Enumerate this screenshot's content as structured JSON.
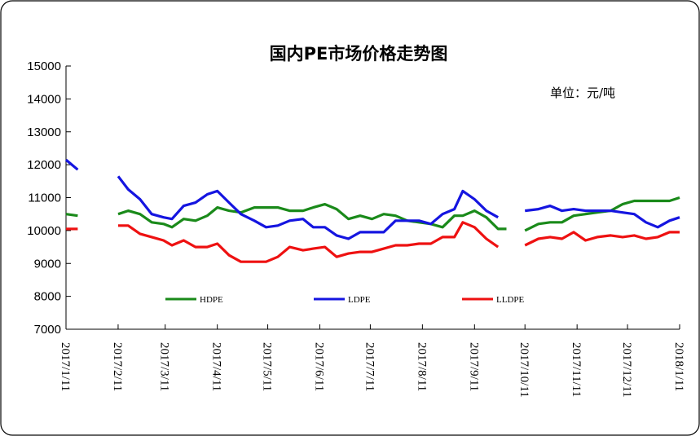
{
  "chart_data": {
    "type": "line",
    "title": "国内PE市场价格走势图",
    "unit_label": "单位：元/吨",
    "ylim": [
      7000,
      15000
    ],
    "y_ticks": [
      7000,
      8000,
      9000,
      10000,
      11000,
      12000,
      13000,
      14000,
      15000
    ],
    "x_ticks": [
      "2017/1/11",
      "2017/2/11",
      "2017/3/11",
      "2017/4/11",
      "2017/5/11",
      "2017/6/11",
      "2017/7/11",
      "2017/8/11",
      "2017/9/11",
      "2017/10/11",
      "2017/11/11",
      "2017/12/11",
      "2018/1/11"
    ],
    "legend_position": "bottom-inside",
    "grid": false,
    "series": [
      {
        "name": "HDPE",
        "color": "#1a8a1a",
        "segments": [
          [
            [
              "2017/1/11",
              10500
            ],
            [
              "2017/1/18",
              10450
            ]
          ],
          [
            [
              "2017/2/11",
              10500
            ],
            [
              "2017/2/17",
              10600
            ],
            [
              "2017/2/24",
              10500
            ],
            [
              "2017/3/3",
              10250
            ],
            [
              "2017/3/10",
              10200
            ],
            [
              "2017/3/15",
              10100
            ],
            [
              "2017/3/22",
              10350
            ],
            [
              "2017/3/29",
              10300
            ],
            [
              "2017/4/5",
              10450
            ],
            [
              "2017/4/11",
              10700
            ],
            [
              "2017/4/18",
              10600
            ],
            [
              "2017/4/25",
              10550
            ],
            [
              "2017/5/3",
              10700
            ],
            [
              "2017/5/10",
              10700
            ],
            [
              "2017/5/17",
              10700
            ],
            [
              "2017/5/24",
              10600
            ],
            [
              "2017/6/1",
              10600
            ],
            [
              "2017/6/7",
              10700
            ],
            [
              "2017/6/14",
              10800
            ],
            [
              "2017/6/21",
              10650
            ],
            [
              "2017/6/28",
              10350
            ],
            [
              "2017/7/5",
              10450
            ],
            [
              "2017/7/12",
              10350
            ],
            [
              "2017/7/19",
              10500
            ],
            [
              "2017/7/26",
              10450
            ],
            [
              "2017/8/2",
              10300
            ],
            [
              "2017/8/9",
              10250
            ],
            [
              "2017/8/16",
              10200
            ],
            [
              "2017/8/23",
              10100
            ],
            [
              "2017/8/30",
              10450
            ],
            [
              "2017/9/4",
              10450
            ],
            [
              "2017/9/11",
              10600
            ],
            [
              "2017/9/18",
              10400
            ],
            [
              "2017/9/25",
              10050
            ],
            [
              "2017/9/30",
              10050
            ]
          ],
          [
            [
              "2017/10/11",
              10000
            ],
            [
              "2017/10/19",
              10200
            ],
            [
              "2017/10/26",
              10250
            ],
            [
              "2017/11/2",
              10250
            ],
            [
              "2017/11/9",
              10450
            ],
            [
              "2017/11/16",
              10500
            ],
            [
              "2017/11/23",
              10550
            ],
            [
              "2017/12/1",
              10600
            ],
            [
              "2017/12/8",
              10800
            ],
            [
              "2017/12/15",
              10900
            ],
            [
              "2017/12/22",
              10900
            ],
            [
              "2017/12/29",
              10900
            ],
            [
              "2018/1/5",
              10900
            ],
            [
              "2018/1/11",
              11000
            ]
          ]
        ]
      },
      {
        "name": "LDPE",
        "color": "#1515e0",
        "segments": [
          [
            [
              "2017/1/11",
              12150
            ],
            [
              "2017/1/18",
              11850
            ]
          ],
          [
            [
              "2017/2/11",
              11650
            ],
            [
              "2017/2/17",
              11250
            ],
            [
              "2017/2/24",
              10950
            ],
            [
              "2017/3/3",
              10500
            ],
            [
              "2017/3/10",
              10400
            ],
            [
              "2017/3/15",
              10350
            ],
            [
              "2017/3/22",
              10750
            ],
            [
              "2017/3/29",
              10850
            ],
            [
              "2017/4/5",
              11100
            ],
            [
              "2017/4/11",
              11200
            ],
            [
              "2017/4/18",
              10850
            ],
            [
              "2017/4/25",
              10500
            ],
            [
              "2017/5/3",
              10300
            ],
            [
              "2017/5/10",
              10100
            ],
            [
              "2017/5/17",
              10150
            ],
            [
              "2017/5/24",
              10300
            ],
            [
              "2017/6/1",
              10350
            ],
            [
              "2017/6/7",
              10100
            ],
            [
              "2017/6/14",
              10100
            ],
            [
              "2017/6/21",
              9850
            ],
            [
              "2017/6/28",
              9750
            ],
            [
              "2017/7/5",
              9950
            ],
            [
              "2017/7/12",
              9950
            ],
            [
              "2017/7/19",
              9950
            ],
            [
              "2017/7/26",
              10300
            ],
            [
              "2017/8/2",
              10300
            ],
            [
              "2017/8/9",
              10300
            ],
            [
              "2017/8/16",
              10200
            ],
            [
              "2017/8/23",
              10500
            ],
            [
              "2017/8/30",
              10650
            ],
            [
              "2017/9/4",
              11200
            ],
            [
              "2017/9/11",
              10950
            ],
            [
              "2017/9/18",
              10600
            ],
            [
              "2017/9/25",
              10400
            ]
          ],
          [
            [
              "2017/10/11",
              10600
            ],
            [
              "2017/10/19",
              10650
            ],
            [
              "2017/10/26",
              10750
            ],
            [
              "2017/11/2",
              10600
            ],
            [
              "2017/11/9",
              10650
            ],
            [
              "2017/11/16",
              10600
            ],
            [
              "2017/11/23",
              10600
            ],
            [
              "2017/12/1",
              10600
            ],
            [
              "2017/12/8",
              10550
            ],
            [
              "2017/12/15",
              10500
            ],
            [
              "2017/12/22",
              10250
            ],
            [
              "2017/12/29",
              10100
            ],
            [
              "2018/1/5",
              10300
            ],
            [
              "2018/1/11",
              10400
            ]
          ]
        ]
      },
      {
        "name": "LLDPE",
        "color": "#ee1111",
        "segments": [
          [
            [
              "2017/1/11",
              10050
            ],
            [
              "2017/1/18",
              10050
            ]
          ],
          [
            [
              "2017/2/11",
              10150
            ],
            [
              "2017/2/17",
              10150
            ],
            [
              "2017/2/24",
              9900
            ],
            [
              "2017/3/3",
              9800
            ],
            [
              "2017/3/10",
              9700
            ],
            [
              "2017/3/15",
              9550
            ],
            [
              "2017/3/22",
              9700
            ],
            [
              "2017/3/29",
              9500
            ],
            [
              "2017/4/5",
              9500
            ],
            [
              "2017/4/11",
              9600
            ],
            [
              "2017/4/18",
              9250
            ],
            [
              "2017/4/25",
              9050
            ],
            [
              "2017/5/3",
              9050
            ],
            [
              "2017/5/10",
              9050
            ],
            [
              "2017/5/17",
              9200
            ],
            [
              "2017/5/24",
              9500
            ],
            [
              "2017/6/1",
              9400
            ],
            [
              "2017/6/7",
              9450
            ],
            [
              "2017/6/14",
              9500
            ],
            [
              "2017/6/21",
              9200
            ],
            [
              "2017/6/28",
              9300
            ],
            [
              "2017/7/5",
              9350
            ],
            [
              "2017/7/12",
              9350
            ],
            [
              "2017/7/19",
              9450
            ],
            [
              "2017/7/26",
              9550
            ],
            [
              "2017/8/2",
              9550
            ],
            [
              "2017/8/9",
              9600
            ],
            [
              "2017/8/16",
              9600
            ],
            [
              "2017/8/23",
              9800
            ],
            [
              "2017/8/30",
              9800
            ],
            [
              "2017/9/4",
              10250
            ],
            [
              "2017/9/11",
              10100
            ],
            [
              "2017/9/18",
              9750
            ],
            [
              "2017/9/25",
              9500
            ]
          ],
          [
            [
              "2017/10/11",
              9550
            ],
            [
              "2017/10/19",
              9750
            ],
            [
              "2017/10/26",
              9800
            ],
            [
              "2017/11/2",
              9750
            ],
            [
              "2017/11/9",
              9950
            ],
            [
              "2017/11/16",
              9700
            ],
            [
              "2017/11/23",
              9800
            ],
            [
              "2017/12/1",
              9850
            ],
            [
              "2017/12/8",
              9800
            ],
            [
              "2017/12/15",
              9850
            ],
            [
              "2017/12/22",
              9750
            ],
            [
              "2017/12/29",
              9800
            ],
            [
              "2018/1/5",
              9950
            ],
            [
              "2018/1/11",
              9950
            ]
          ]
        ]
      }
    ]
  }
}
